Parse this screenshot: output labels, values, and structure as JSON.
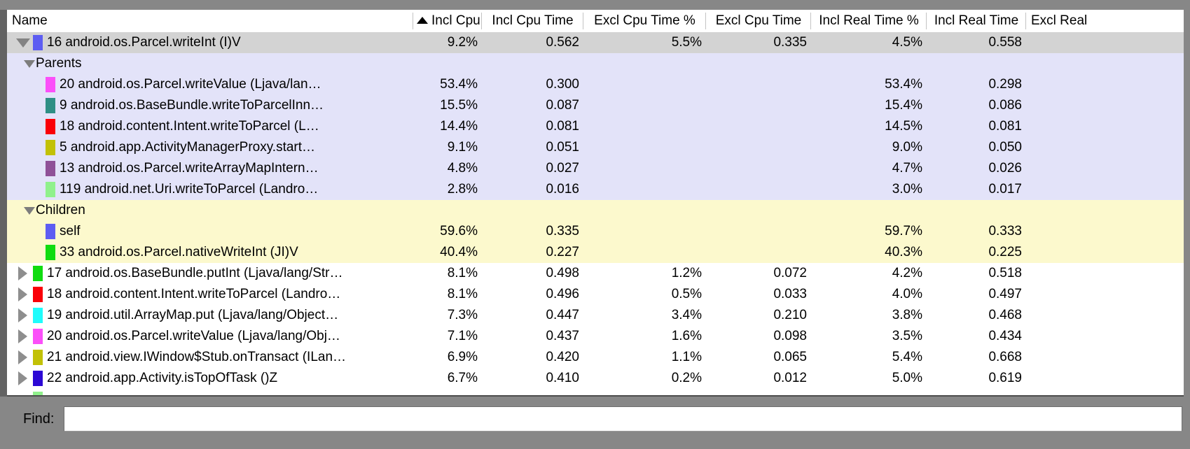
{
  "colors": {
    "frame": "#878787",
    "selected_row": "#d3d3d3",
    "parents_group_bg": "#e3e3f9",
    "children_group_bg": "#fcf9cd",
    "row_bg": "#ffffff",
    "disclosure_gray": "#8e8e8e"
  },
  "table": {
    "columns": [
      {
        "label": "Name"
      },
      {
        "label": "Incl Cpu Tir",
        "sorted": "ascending"
      },
      {
        "label": "Incl Cpu Time"
      },
      {
        "label": "Excl Cpu Time %"
      },
      {
        "label": "Excl Cpu Time"
      },
      {
        "label": "Incl Real Time %"
      },
      {
        "label": "Incl Real Time"
      },
      {
        "label": "Excl Real"
      }
    ],
    "rows": [
      {
        "type": "method",
        "expanded": true,
        "selected": true,
        "swatch": "#5d5df2",
        "name": "16 android.os.Parcel.writeInt (I)V",
        "values": [
          "9.2%",
          "0.562",
          "5.5%",
          "0.335",
          "4.5%",
          "0.558",
          ""
        ]
      },
      {
        "type": "section",
        "group": "parents",
        "label": "Parents"
      },
      {
        "type": "item",
        "group": "parents",
        "swatch": "#fb4ff9",
        "name": "20 android.os.Parcel.writeValue (Ljava/lan…",
        "values": [
          "53.4%",
          "0.300",
          "",
          "",
          "53.4%",
          "0.298",
          ""
        ]
      },
      {
        "type": "item",
        "group": "parents",
        "swatch": "#2f8f85",
        "name": "9 android.os.BaseBundle.writeToParcelInn…",
        "values": [
          "15.5%",
          "0.087",
          "",
          "",
          "15.4%",
          "0.086",
          ""
        ]
      },
      {
        "type": "item",
        "group": "parents",
        "swatch": "#fa0008",
        "name": "18 android.content.Intent.writeToParcel (L…",
        "values": [
          "14.4%",
          "0.081",
          "",
          "",
          "14.5%",
          "0.081",
          ""
        ]
      },
      {
        "type": "item",
        "group": "parents",
        "swatch": "#c2c106",
        "name": "5 android.app.ActivityManagerProxy.start…",
        "values": [
          "9.1%",
          "0.051",
          "",
          "",
          "9.0%",
          "0.050",
          ""
        ]
      },
      {
        "type": "item",
        "group": "parents",
        "swatch": "#8f5198",
        "name": "13 android.os.Parcel.writeArrayMapIntern…",
        "values": [
          "4.8%",
          "0.027",
          "",
          "",
          "4.7%",
          "0.026",
          ""
        ]
      },
      {
        "type": "item",
        "group": "parents",
        "swatch": "#90f18c",
        "name": "119 android.net.Uri.writeToParcel (Landro…",
        "values": [
          "2.8%",
          "0.016",
          "",
          "",
          "3.0%",
          "0.017",
          ""
        ]
      },
      {
        "type": "section",
        "group": "children",
        "label": "Children"
      },
      {
        "type": "item",
        "group": "children",
        "swatch": "#5d5df2",
        "name": "self",
        "values": [
          "59.6%",
          "0.335",
          "",
          "",
          "59.7%",
          "0.333",
          ""
        ]
      },
      {
        "type": "item",
        "group": "children",
        "swatch": "#10dc10",
        "name": "33 android.os.Parcel.nativeWriteInt (JI)V",
        "values": [
          "40.4%",
          "0.227",
          "",
          "",
          "40.3%",
          "0.225",
          ""
        ]
      },
      {
        "type": "method",
        "expanded": false,
        "swatch": "#10dc10",
        "name": "17 android.os.BaseBundle.putInt (Ljava/lang/Str…",
        "values": [
          "8.1%",
          "0.498",
          "1.2%",
          "0.072",
          "4.2%",
          "0.518",
          ""
        ]
      },
      {
        "type": "method",
        "expanded": false,
        "swatch": "#fa0008",
        "name": "18 android.content.Intent.writeToParcel (Landro…",
        "values": [
          "8.1%",
          "0.496",
          "0.5%",
          "0.033",
          "4.0%",
          "0.497",
          ""
        ]
      },
      {
        "type": "method",
        "expanded": false,
        "swatch": "#1ffcfc",
        "name": "19 android.util.ArrayMap.put (Ljava/lang/Object…",
        "values": [
          "7.3%",
          "0.447",
          "3.4%",
          "0.210",
          "3.8%",
          "0.468",
          ""
        ]
      },
      {
        "type": "method",
        "expanded": false,
        "swatch": "#fb4ff9",
        "name": "20 android.os.Parcel.writeValue (Ljava/lang/Obj…",
        "values": [
          "7.1%",
          "0.437",
          "1.6%",
          "0.098",
          "3.5%",
          "0.434",
          ""
        ]
      },
      {
        "type": "method",
        "expanded": false,
        "swatch": "#c2c106",
        "name": "21 android.view.IWindow$Stub.onTransact (ILan…",
        "values": [
          "6.9%",
          "0.420",
          "1.1%",
          "0.065",
          "5.4%",
          "0.668",
          ""
        ]
      },
      {
        "type": "method",
        "expanded": false,
        "swatch": "#2c08d5",
        "name": "22 android.app.Activity.isTopOfTask ()Z",
        "values": [
          "6.7%",
          "0.410",
          "0.2%",
          "0.012",
          "5.0%",
          "0.619",
          ""
        ]
      },
      {
        "type": "partial",
        "swatch": "#90f18c"
      }
    ]
  },
  "find": {
    "label": "Find:",
    "value": ""
  }
}
